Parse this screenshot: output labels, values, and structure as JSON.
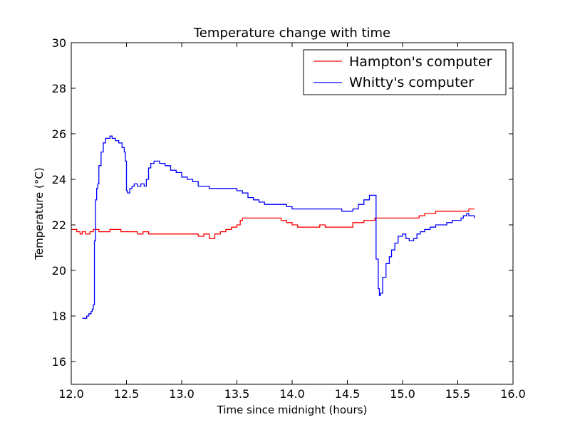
{
  "chart_data": {
    "type": "line",
    "title": "Temperature change with time",
    "xlabel": "Time since midnight (hours)",
    "ylabel": "Temperature (°C)",
    "xlim": [
      12.0,
      16.0
    ],
    "ylim": [
      15,
      30
    ],
    "xticks": [
      "12.0",
      "12.5",
      "13.0",
      "13.5",
      "14.0",
      "14.5",
      "15.0",
      "15.5",
      "16.0"
    ],
    "xtick_values": [
      12.0,
      12.5,
      13.0,
      13.5,
      14.0,
      14.5,
      15.0,
      15.5,
      16.0
    ],
    "yticks": [
      "16",
      "18",
      "20",
      "22",
      "24",
      "26",
      "28",
      "30"
    ],
    "ytick_values": [
      16,
      18,
      20,
      22,
      24,
      26,
      28,
      30
    ],
    "grid": false,
    "legend": "top-right",
    "series": [
      {
        "name": "Hampton's computer",
        "color": "#ff0000",
        "x": [
          12.0,
          12.05,
          12.08,
          12.1,
          12.13,
          12.17,
          12.2,
          12.25,
          12.3,
          12.35,
          12.4,
          12.45,
          12.5,
          12.55,
          12.6,
          12.65,
          12.7,
          12.75,
          12.8,
          12.9,
          13.0,
          13.05,
          13.1,
          13.15,
          13.2,
          13.25,
          13.3,
          13.35,
          13.4,
          13.45,
          13.5,
          13.53,
          13.55,
          13.6,
          13.7,
          13.8,
          13.85,
          13.9,
          13.95,
          14.0,
          14.05,
          14.1,
          14.15,
          14.2,
          14.25,
          14.3,
          14.35,
          14.4,
          14.45,
          14.5,
          14.55,
          14.6,
          14.65,
          14.7,
          14.75,
          14.8,
          14.9,
          15.0,
          15.05,
          15.1,
          15.15,
          15.2,
          15.3,
          15.4,
          15.5,
          15.55,
          15.6,
          15.65
        ],
        "y": [
          21.8,
          21.7,
          21.6,
          21.7,
          21.6,
          21.7,
          21.8,
          21.7,
          21.7,
          21.8,
          21.8,
          21.7,
          21.7,
          21.7,
          21.6,
          21.7,
          21.6,
          21.6,
          21.6,
          21.6,
          21.6,
          21.6,
          21.6,
          21.5,
          21.6,
          21.4,
          21.6,
          21.7,
          21.8,
          21.9,
          22.0,
          22.2,
          22.3,
          22.3,
          22.3,
          22.3,
          22.3,
          22.2,
          22.1,
          22.0,
          21.9,
          21.9,
          21.9,
          21.9,
          22.0,
          21.9,
          21.9,
          21.9,
          21.9,
          21.9,
          22.1,
          22.1,
          22.2,
          22.2,
          22.3,
          22.3,
          22.3,
          22.3,
          22.3,
          22.3,
          22.4,
          22.5,
          22.6,
          22.6,
          22.6,
          22.6,
          22.7,
          22.7
        ]
      },
      {
        "name": "Whitty's computer",
        "color": "#0000ff",
        "x": [
          12.1,
          12.12,
          12.14,
          12.16,
          12.18,
          12.19,
          12.2,
          12.21,
          12.22,
          12.23,
          12.24,
          12.25,
          12.27,
          12.29,
          12.31,
          12.33,
          12.35,
          12.37,
          12.4,
          12.43,
          12.46,
          12.48,
          12.49,
          12.5,
          12.51,
          12.53,
          12.55,
          12.57,
          12.6,
          12.63,
          12.66,
          12.68,
          12.7,
          12.72,
          12.75,
          12.8,
          12.85,
          12.9,
          12.95,
          13.0,
          13.05,
          13.1,
          13.15,
          13.2,
          13.25,
          13.3,
          13.35,
          13.4,
          13.45,
          13.5,
          13.55,
          13.6,
          13.65,
          13.7,
          13.75,
          13.8,
          13.85,
          13.9,
          13.95,
          14.0,
          14.1,
          14.2,
          14.3,
          14.4,
          14.45,
          14.5,
          14.55,
          14.6,
          14.65,
          14.7,
          14.73,
          14.75,
          14.76,
          14.78,
          14.79,
          14.8,
          14.82,
          14.85,
          14.88,
          14.9,
          14.93,
          14.96,
          15.0,
          15.03,
          15.06,
          15.1,
          15.13,
          15.16,
          15.2,
          15.25,
          15.3,
          15.35,
          15.4,
          15.45,
          15.5,
          15.53,
          15.55,
          15.58,
          15.6,
          15.65
        ],
        "y": [
          17.9,
          17.9,
          18.0,
          18.1,
          18.2,
          18.3,
          18.5,
          21.3,
          23.1,
          23.6,
          23.8,
          24.6,
          25.2,
          25.6,
          25.8,
          25.8,
          25.9,
          25.8,
          25.7,
          25.6,
          25.4,
          25.2,
          24.8,
          23.5,
          23.4,
          23.6,
          23.7,
          23.8,
          23.7,
          23.8,
          23.7,
          24.0,
          24.5,
          24.7,
          24.8,
          24.7,
          24.6,
          24.4,
          24.3,
          24.1,
          24.0,
          23.9,
          23.7,
          23.7,
          23.6,
          23.6,
          23.6,
          23.6,
          23.6,
          23.5,
          23.4,
          23.2,
          23.1,
          23.0,
          22.9,
          22.9,
          22.9,
          22.9,
          22.8,
          22.7,
          22.7,
          22.7,
          22.7,
          22.7,
          22.6,
          22.6,
          22.7,
          22.9,
          23.1,
          23.3,
          23.3,
          23.3,
          20.5,
          19.2,
          18.9,
          19.0,
          19.7,
          20.3,
          20.6,
          20.9,
          21.2,
          21.5,
          21.6,
          21.4,
          21.3,
          21.4,
          21.6,
          21.7,
          21.8,
          21.9,
          22.0,
          22.0,
          22.1,
          22.2,
          22.2,
          22.3,
          22.4,
          22.5,
          22.4,
          22.3
        ]
      }
    ]
  }
}
